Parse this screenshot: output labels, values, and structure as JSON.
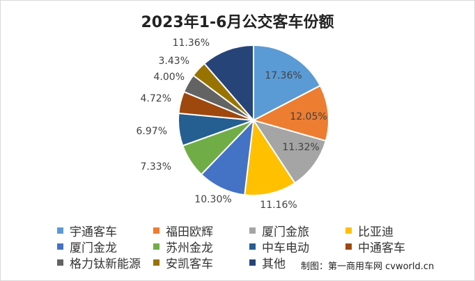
{
  "chart_data": {
    "type": "pie",
    "title": "2023年1-6月公交客车份额",
    "categories": [
      "宇通客车",
      "福田欧辉",
      "厦门金旅",
      "比亚迪",
      "厦门金龙",
      "苏州金龙",
      "中车电动",
      "中通客车",
      "格力钛新能源",
      "安凯客车",
      "其他"
    ],
    "values": [
      17.36,
      12.05,
      11.32,
      11.16,
      10.3,
      7.33,
      6.97,
      4.72,
      4.0,
      3.43,
      11.36
    ],
    "labels": [
      "17.36%",
      "12.05%",
      "11.32%",
      "11.16%",
      "10.30%",
      "7.33%",
      "6.97%",
      "4.72%",
      "4.00%",
      "3.43%",
      "11.36%"
    ],
    "colors": [
      "#5b9bd5",
      "#ed7d31",
      "#a5a5a5",
      "#ffc000",
      "#4472c4",
      "#70ad47",
      "#255e91",
      "#9e480e",
      "#636363",
      "#997300",
      "#264478"
    ],
    "legend_position": "bottom"
  },
  "credit": "制图：第一商用车网 cvworld.cn"
}
